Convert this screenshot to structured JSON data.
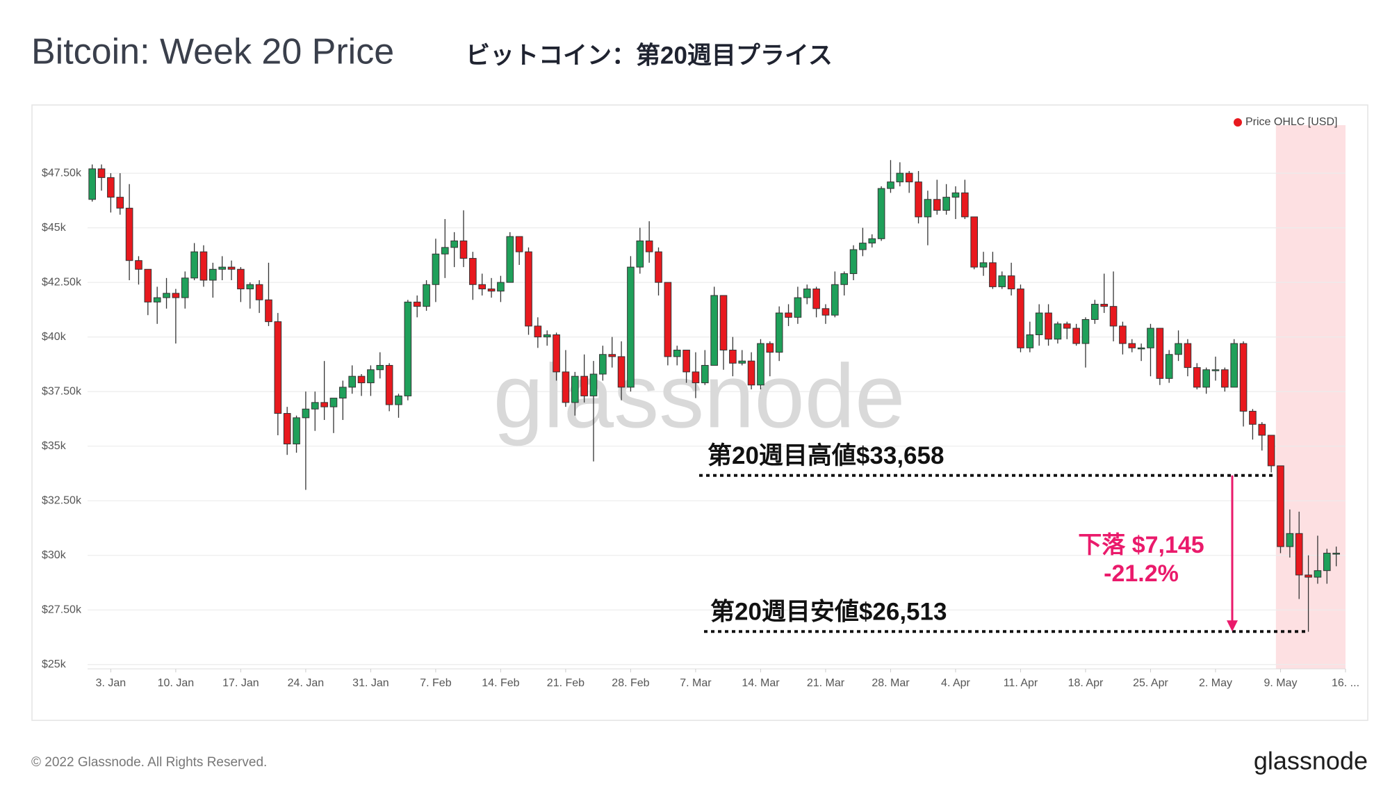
{
  "chart_data": {
    "type": "candlestick",
    "title": "Bitcoin: Week 20 Price",
    "subtitle": "ビットコイン：第20週目プライス",
    "watermark": "glassnode",
    "footer": "© 2022 Glassnode. All Rights Reserved.",
    "logo": "glassnode",
    "grid": true,
    "legend": "top-right",
    "xlim": [
      -0.5,
      135
    ],
    "xticks": [
      {
        "value": 2,
        "label": "3. Jan"
      },
      {
        "value": 9,
        "label": "10. Jan"
      },
      {
        "value": 16,
        "label": "17. Jan"
      },
      {
        "value": 23,
        "label": "24. Jan"
      },
      {
        "value": 30,
        "label": "31. Jan"
      },
      {
        "value": 37,
        "label": "7. Feb"
      },
      {
        "value": 44,
        "label": "14. Feb"
      },
      {
        "value": 51,
        "label": "21. Feb"
      },
      {
        "value": 58,
        "label": "28. Feb"
      },
      {
        "value": 65,
        "label": "7. Mar"
      },
      {
        "value": 72,
        "label": "14. Mar"
      },
      {
        "value": 79,
        "label": "21. Mar"
      },
      {
        "value": 86,
        "label": "28. Mar"
      },
      {
        "value": 93,
        "label": "4. Apr"
      },
      {
        "value": 100,
        "label": "11. Apr"
      },
      {
        "value": 107,
        "label": "18. Apr"
      },
      {
        "value": 114,
        "label": "25. Apr"
      },
      {
        "value": 121,
        "label": "2. May"
      },
      {
        "value": 128,
        "label": "9. May"
      },
      {
        "value": 135,
        "label": "16. ..."
      }
    ],
    "ylim": [
      24800,
      49700
    ],
    "yticks": [
      {
        "value": 25000,
        "label": "$25k"
      },
      {
        "value": 27500,
        "label": "$27.50k"
      },
      {
        "value": 30000,
        "label": "$30k"
      },
      {
        "value": 32500,
        "label": "$32.50k"
      },
      {
        "value": 35000,
        "label": "$35k"
      },
      {
        "value": 37500,
        "label": "$37.50k"
      },
      {
        "value": 40000,
        "label": "$40k"
      },
      {
        "value": 42500,
        "label": "$42.50k"
      },
      {
        "value": 45000,
        "label": "$45k"
      },
      {
        "value": 47500,
        "label": "$47.50k"
      }
    ],
    "highlight_xlim": [
      127.5,
      135
    ],
    "highlight_color": "#fde0e2",
    "series": [
      {
        "name": "Price OHLC [USD]",
        "color": "#e8191e",
        "up_color": "#1fa05a",
        "down_color": "#e8191e",
        "x": [
          0,
          1,
          2,
          3,
          4,
          5,
          6,
          7,
          8,
          9,
          10,
          11,
          12,
          13,
          14,
          15,
          16,
          17,
          18,
          19,
          20,
          21,
          22,
          23,
          24,
          25,
          26,
          27,
          28,
          29,
          30,
          31,
          32,
          33,
          34,
          35,
          36,
          37,
          38,
          39,
          40,
          41,
          42,
          43,
          44,
          45,
          46,
          47,
          48,
          49,
          50,
          51,
          52,
          53,
          54,
          55,
          56,
          57,
          58,
          59,
          60,
          61,
          62,
          63,
          64,
          65,
          66,
          67,
          68,
          69,
          70,
          71,
          72,
          73,
          74,
          75,
          76,
          77,
          78,
          79,
          80,
          81,
          82,
          83,
          84,
          85,
          86,
          87,
          88,
          89,
          90,
          91,
          92,
          93,
          94,
          95,
          96,
          97,
          98,
          99,
          100,
          101,
          102,
          103,
          104,
          105,
          106,
          107,
          108,
          109,
          110,
          111,
          112,
          113,
          114,
          115,
          116,
          117,
          118,
          119,
          120,
          121,
          122,
          123,
          124,
          125,
          126,
          127,
          128,
          129,
          130,
          131,
          132,
          133,
          134
        ],
        "open": [
          46300,
          47700,
          47300,
          46400,
          45900,
          43500,
          43100,
          41600,
          41800,
          42000,
          41800,
          42700,
          43900,
          42600,
          43100,
          43200,
          43100,
          42200,
          42400,
          41700,
          40700,
          36500,
          35100,
          36300,
          36700,
          37000,
          36800,
          37200,
          37700,
          38200,
          37900,
          38500,
          38700,
          36900,
          37300,
          41600,
          41400,
          42400,
          43800,
          44100,
          44400,
          43600,
          42400,
          42200,
          42100,
          42500,
          44600,
          43900,
          40500,
          40000,
          40100,
          38400,
          37000,
          38200,
          37300,
          38300,
          39200,
          39100,
          37700,
          43200,
          44400,
          43900,
          42500,
          39100,
          39400,
          38400,
          37900,
          38700,
          41900,
          39400,
          38800,
          38900,
          37800,
          39700,
          39300,
          41100,
          40900,
          41800,
          42200,
          41300,
          41000,
          42400,
          42900,
          44000,
          44300,
          44500,
          46800,
          47100,
          47500,
          47100,
          45500,
          46300,
          45800,
          46400,
          46600,
          45500,
          43200,
          43400,
          42300,
          42800,
          42200,
          39500,
          40100,
          41100,
          39900,
          40600,
          40400,
          39700,
          40800,
          41500,
          41400,
          40500,
          39700,
          39500,
          39500,
          40400,
          38100,
          39200,
          39700,
          38600,
          37700,
          38500,
          38500,
          37700,
          39700,
          36600,
          36000,
          35500,
          34100,
          30400,
          31000,
          29100,
          29000,
          29300,
          30100
        ],
        "high": [
          47900,
          47900,
          47500,
          47500,
          47000,
          43700,
          43100,
          42300,
          42700,
          42200,
          43000,
          44300,
          44200,
          43400,
          43700,
          43500,
          43200,
          42500,
          42600,
          43400,
          41100,
          36800,
          36400,
          37500,
          37500,
          38900,
          37200,
          38000,
          38700,
          38300,
          38700,
          39300,
          38800,
          37400,
          41700,
          41900,
          42600,
          44500,
          45400,
          44800,
          45800,
          43900,
          42900,
          42700,
          42800,
          44800,
          44600,
          44100,
          40900,
          40300,
          40200,
          39400,
          38400,
          39200,
          38900,
          39600,
          40000,
          39800,
          43700,
          45000,
          45300,
          44100,
          42500,
          39600,
          39400,
          39300,
          39400,
          42300,
          41900,
          40000,
          39400,
          39300,
          39900,
          39800,
          41400,
          41500,
          42300,
          42400,
          42300,
          41500,
          43000,
          43000,
          44200,
          45000,
          44700,
          46900,
          48100,
          48000,
          47600,
          47600,
          46700,
          47200,
          47000,
          46900,
          47200,
          45500,
          43900,
          43900,
          43000,
          43400,
          42400,
          40700,
          41500,
          41500,
          40700,
          40700,
          40600,
          40900,
          41700,
          42900,
          43000,
          40700,
          39900,
          39700,
          40600,
          40400,
          39400,
          40300,
          39900,
          38800,
          38600,
          39100,
          38600,
          39900,
          39800,
          36700,
          36100,
          35500,
          34100,
          32100,
          32000,
          30000,
          30900,
          30300,
          30400
        ],
        "low": [
          46200,
          46700,
          45700,
          45600,
          42600,
          42400,
          41000,
          40600,
          41300,
          39700,
          41300,
          42600,
          42300,
          41800,
          42600,
          42600,
          41600,
          41300,
          41100,
          40500,
          35500,
          34600,
          34700,
          33000,
          35700,
          36200,
          35600,
          36200,
          37400,
          37300,
          37300,
          38100,
          36600,
          36300,
          37100,
          40900,
          41200,
          41600,
          42700,
          43200,
          43200,
          41700,
          41900,
          41800,
          41600,
          42500,
          43300,
          40100,
          39500,
          39600,
          38000,
          36800,
          36400,
          37000,
          34300,
          38000,
          38600,
          37100,
          37500,
          42900,
          43400,
          41900,
          38700,
          38700,
          37900,
          37200,
          37800,
          38700,
          38500,
          38200,
          38700,
          37600,
          37600,
          38200,
          38900,
          40500,
          40600,
          41500,
          40900,
          40600,
          40900,
          41900,
          42600,
          43700,
          44100,
          44400,
          46600,
          46900,
          46600,
          45200,
          44200,
          45600,
          45600,
          45400,
          45400,
          43100,
          42800,
          42200,
          42200,
          41900,
          39300,
          39300,
          39600,
          39600,
          39700,
          39900,
          39600,
          38600,
          40600,
          41100,
          39800,
          39200,
          39300,
          38900,
          38200,
          37800,
          37900,
          38900,
          38200,
          37600,
          37400,
          38000,
          37500,
          37700,
          35900,
          35300,
          34800,
          33800,
          30100,
          29900,
          28000,
          26500,
          28700,
          28700,
          29500
        ],
        "close": [
          47700,
          47300,
          46400,
          45900,
          43500,
          43100,
          41600,
          41800,
          42000,
          41800,
          42700,
          43900,
          42600,
          43100,
          43200,
          43100,
          42200,
          42400,
          41700,
          40700,
          36500,
          35100,
          36300,
          36700,
          37000,
          36800,
          37200,
          37700,
          38200,
          37900,
          38500,
          38700,
          36900,
          37300,
          41600,
          41400,
          42400,
          43800,
          44100,
          44400,
          43600,
          42400,
          42200,
          42100,
          42500,
          44600,
          43900,
          40500,
          40000,
          40100,
          38400,
          37000,
          38200,
          37300,
          38300,
          39200,
          39100,
          37700,
          43200,
          44400,
          43900,
          42500,
          39100,
          39400,
          38400,
          37900,
          38700,
          41900,
          39400,
          38800,
          38900,
          37800,
          39700,
          39300,
          41100,
          40900,
          41800,
          42200,
          41300,
          41000,
          42400,
          42900,
          44000,
          44300,
          44500,
          46800,
          47100,
          47500,
          47100,
          45500,
          46300,
          45800,
          46400,
          46600,
          45500,
          43200,
          43400,
          42300,
          42800,
          42200,
          39500,
          40100,
          41100,
          39900,
          40600,
          40400,
          39700,
          40800,
          41500,
          41400,
          40500,
          39700,
          39500,
          39500,
          40400,
          38100,
          39200,
          39700,
          38600,
          37700,
          38500,
          38500,
          37700,
          39700,
          36600,
          36000,
          35500,
          34100,
          30400,
          31000,
          29100,
          29000,
          29300,
          30100,
          30100
        ]
      }
    ],
    "annotations": [
      {
        "text": "第20週目高値$33,658",
        "value": 33658
      },
      {
        "text": "第20週目安値$26,513",
        "value": 26513
      }
    ],
    "drop": {
      "color": "#ea1a6b",
      "lines": [
        "下落 $7,145",
        "-21.2%"
      ]
    }
  }
}
